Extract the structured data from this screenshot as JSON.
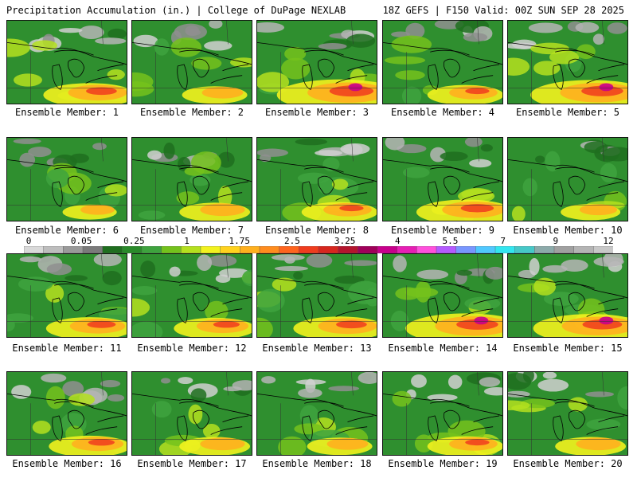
{
  "header": {
    "left_title": "Precipitation Accumulation (in.) | College of DuPage NEXLAB",
    "right_title": "18Z GEFS | F150 Valid: 00Z SUN SEP 28 2025"
  },
  "colorbar": {
    "ticks": [
      "0",
      "0.05",
      "0.25",
      "1",
      "1.75",
      "2.5",
      "3.25",
      "4",
      "5.5",
      "7",
      "9",
      "12"
    ],
    "colors": [
      "#d9d9d9",
      "#bdbdbd",
      "#9a9a9a",
      "#7a7a7a",
      "#1f6e1f",
      "#2a8a2a",
      "#3ea33e",
      "#74c21c",
      "#b4e01e",
      "#f2f21e",
      "#ffd21e",
      "#ffb01e",
      "#ff8c1e",
      "#ff641e",
      "#f03c1e",
      "#d7261e",
      "#b4142d",
      "#a0005a",
      "#c8008c",
      "#e61eb4",
      "#ff50dc",
      "#b45aff",
      "#7896ff",
      "#50c8ff",
      "#32e6f0",
      "#46c8c8",
      "#8caaaa",
      "#a0a0a0",
      "#b4b4b4",
      "#c8c8c8"
    ]
  },
  "members": [
    {
      "label": "Ensemble Member: 1",
      "hot": 0.7
    },
    {
      "label": "Ensemble Member: 2",
      "hot": 0.45
    },
    {
      "label": "Ensemble Member: 3",
      "hot": 1.0
    },
    {
      "label": "Ensemble Member: 4",
      "hot": 0.55
    },
    {
      "label": "Ensemble Member: 5",
      "hot": 0.95
    },
    {
      "label": "Ensemble Member: 6",
      "hot": 0.35
    },
    {
      "label": "Ensemble Member: 7",
      "hot": 0.5
    },
    {
      "label": "Ensemble Member: 8",
      "hot": 0.55
    },
    {
      "label": "Ensemble Member: 9",
      "hot": 0.75
    },
    {
      "label": "Ensemble Member: 10",
      "hot": 0.4
    },
    {
      "label": "Ensemble Member: 11",
      "hot": 0.65
    },
    {
      "label": "Ensemble Member: 12",
      "hot": 0.6
    },
    {
      "label": "Ensemble Member: 13",
      "hot": 0.7
    },
    {
      "label": "Ensemble Member: 14",
      "hot": 0.95
    },
    {
      "label": "Ensemble Member: 15",
      "hot": 0.9
    },
    {
      "label": "Ensemble Member: 16",
      "hot": 0.6
    },
    {
      "label": "Ensemble Member: 17",
      "hot": 0.5
    },
    {
      "label": "Ensemble Member: 18",
      "hot": 0.45
    },
    {
      "label": "Ensemble Member: 19",
      "hot": 0.55
    },
    {
      "label": "Ensemble Member: 20",
      "hot": 0.5
    }
  ]
}
